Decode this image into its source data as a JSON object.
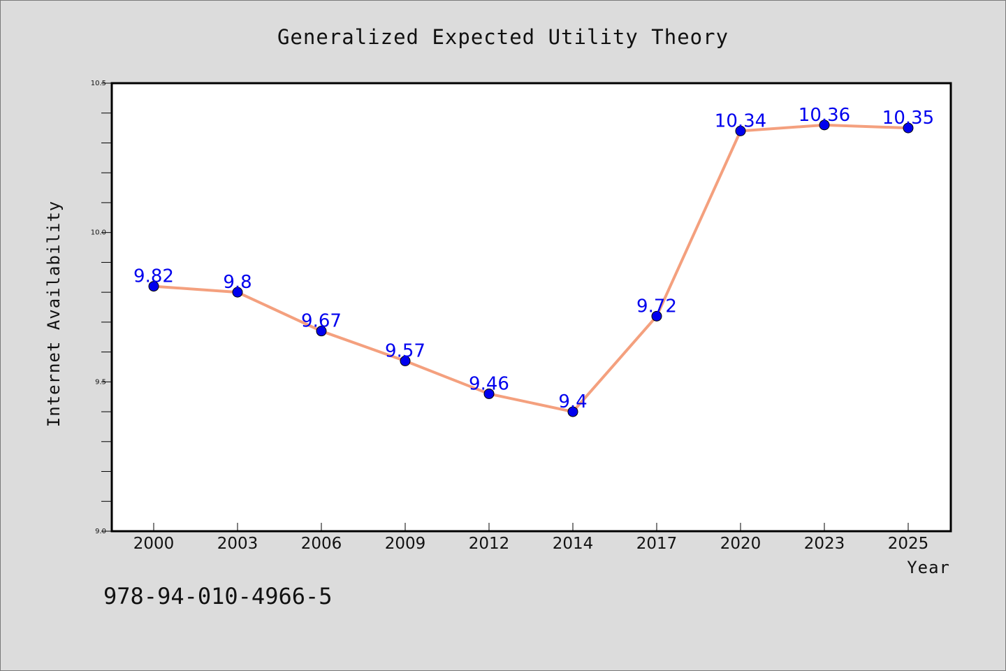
{
  "chart_data": {
    "type": "line",
    "title": "Generalized Expected Utility Theory",
    "xlabel": "Year",
    "ylabel": "Internet Availability",
    "categories": [
      "2000",
      "2003",
      "2006",
      "2009",
      "2012",
      "2014",
      "2017",
      "2020",
      "2023",
      "2025"
    ],
    "series": [
      {
        "values": [
          9.82,
          9.8,
          9.67,
          9.57,
          9.46,
          9.4,
          9.72,
          10.34,
          10.36,
          10.35
        ],
        "labels": [
          "9.82",
          "9.8",
          "9.67",
          "9.57",
          "9.46",
          "9.4",
          "9.72",
          "10.34",
          "10.36",
          "10.35"
        ]
      }
    ],
    "ylim": [
      9.0,
      10.5
    ],
    "yticks": [
      "9.0",
      "9.5",
      "10.0",
      "10.5"
    ],
    "grid": false,
    "legend": "none",
    "colors": {
      "line": "#f4a07e",
      "marker": "#0000ee",
      "label": "#0000ee",
      "background": "#dcdcdc",
      "plot_area": "#ffffff"
    }
  },
  "footer": {
    "isbn": "978-94-010-4966-5"
  }
}
